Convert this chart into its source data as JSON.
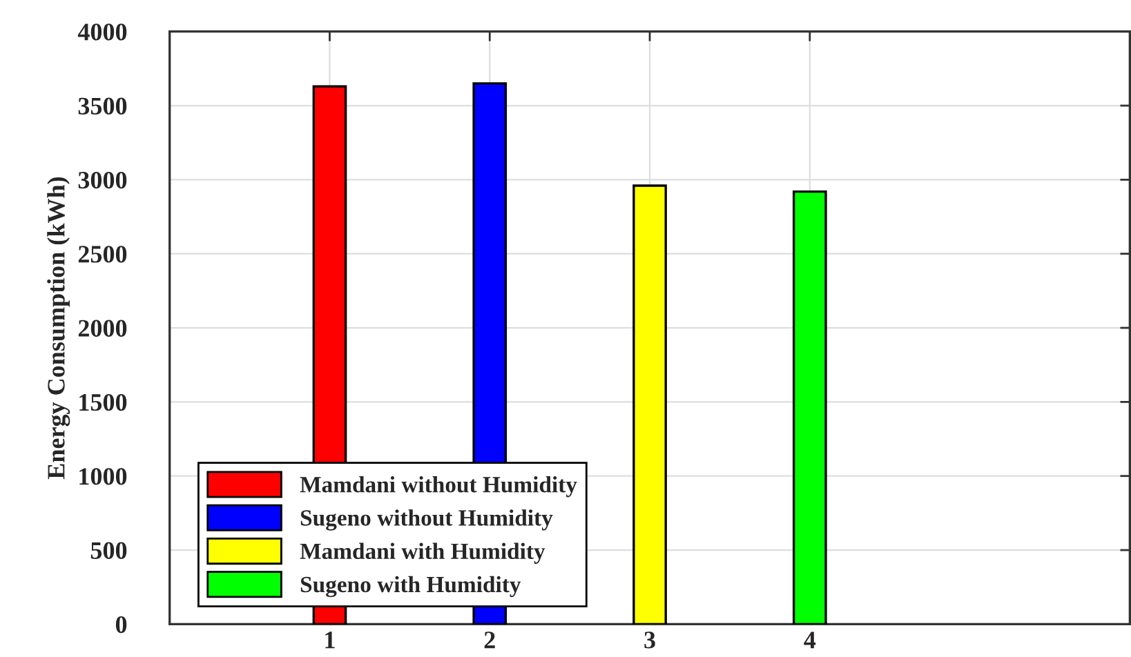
{
  "chart_data": {
    "type": "bar",
    "ylabel": "Energy Consumption (kWh)",
    "xlim": [
      0,
      6
    ],
    "xticks": [
      1,
      2,
      3,
      4
    ],
    "ylim": [
      0,
      4000
    ],
    "yticks": [
      0,
      500,
      1000,
      1500,
      2000,
      2500,
      3000,
      3500,
      4000
    ],
    "grid": true,
    "legend": "bottom left",
    "series": [
      {
        "name": "Mamdani without Humidity",
        "color": "#ff0000",
        "x": [
          1
        ],
        "values": [
          3630
        ]
      },
      {
        "name": "Sugeno without Humidity",
        "color": "#0000ff",
        "x": [
          2
        ],
        "values": [
          3650
        ]
      },
      {
        "name": "Mamdani with Humidity",
        "color": "#ffff00",
        "x": [
          3
        ],
        "values": [
          2960
        ]
      },
      {
        "name": "Sugeno with Humidity",
        "color": "#00ff00",
        "x": [
          4
        ],
        "values": [
          2920
        ]
      }
    ]
  }
}
